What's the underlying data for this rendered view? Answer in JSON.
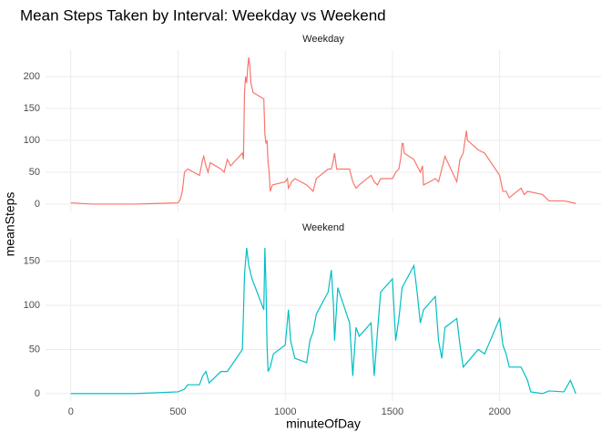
{
  "title": "Mean Steps Taken by Interval: Weekday vs Weekend",
  "x_label": "minuteOfDay",
  "y_label": "meanSteps",
  "chart_data": [
    {
      "type": "line",
      "title": "Weekday",
      "x": [
        0,
        100,
        200,
        300,
        400,
        500,
        510,
        520,
        530,
        545,
        600,
        615,
        620,
        630,
        640,
        650,
        700,
        715,
        730,
        745,
        800,
        805,
        810,
        815,
        820,
        825,
        830,
        835,
        840,
        850,
        900,
        905,
        910,
        915,
        920,
        925,
        930,
        940,
        1000,
        1010,
        1015,
        1030,
        1045,
        1100,
        1115,
        1130,
        1145,
        1200,
        1215,
        1225,
        1230,
        1240,
        1300,
        1315,
        1330,
        1345,
        1400,
        1415,
        1430,
        1445,
        1500,
        1515,
        1530,
        1540,
        1545,
        1550,
        1555,
        1600,
        1630,
        1640,
        1645,
        1700,
        1715,
        1730,
        1745,
        1800,
        1815,
        1830,
        1845,
        1850,
        1900,
        1930,
        2000,
        2015,
        2030,
        2045,
        2100,
        2115,
        2130,
        2200,
        2230,
        2300,
        2330,
        2355
      ],
      "series": [
        {
          "name": "Weekday",
          "color": "#F8766D",
          "values": [
            2,
            0,
            0,
            0,
            1,
            2,
            7,
            20,
            50,
            55,
            45,
            70,
            75,
            60,
            50,
            65,
            55,
            50,
            70,
            60,
            80,
            70,
            175,
            200,
            190,
            215,
            230,
            215,
            190,
            175,
            165,
            110,
            95,
            100,
            65,
            50,
            20,
            30,
            35,
            40,
            25,
            35,
            40,
            30,
            25,
            20,
            40,
            55,
            55,
            70,
            80,
            55,
            55,
            35,
            25,
            30,
            45,
            35,
            30,
            40,
            40,
            50,
            55,
            75,
            95,
            95,
            80,
            70,
            50,
            60,
            30,
            40,
            35,
            55,
            75,
            35,
            70,
            80,
            115,
            100,
            85,
            80,
            45,
            20,
            20,
            10,
            25,
            15,
            20,
            15,
            5,
            5,
            3,
            1
          ]
        }
      ],
      "xlim": [
        -118,
        2473
      ],
      "xticks": [
        0,
        500,
        1000,
        1500,
        2000
      ],
      "ylim": [
        -11.5,
        241.5
      ],
      "yticks": [
        0,
        50,
        100,
        150,
        200
      ],
      "grid": true
    },
    {
      "type": "line",
      "title": "Weekend",
      "x": [
        0,
        100,
        300,
        500,
        530,
        545,
        600,
        615,
        630,
        645,
        700,
        730,
        800,
        805,
        810,
        820,
        825,
        830,
        845,
        900,
        905,
        910,
        915,
        920,
        930,
        945,
        1000,
        1015,
        1025,
        1030,
        1045,
        1100,
        1115,
        1130,
        1145,
        1200,
        1215,
        1225,
        1230,
        1245,
        1300,
        1315,
        1330,
        1345,
        1400,
        1415,
        1430,
        1445,
        1500,
        1515,
        1530,
        1545,
        1600,
        1615,
        1630,
        1645,
        1700,
        1715,
        1730,
        1745,
        1800,
        1815,
        1830,
        1900,
        1930,
        2000,
        2015,
        2030,
        2045,
        2100,
        2130,
        2145,
        2200,
        2230,
        2300,
        2330,
        2355
      ],
      "series": [
        {
          "name": "Weekend",
          "color": "#00BFC4",
          "values": [
            0,
            0,
            0,
            2,
            5,
            10,
            10,
            20,
            25,
            12,
            25,
            25,
            50,
            90,
            135,
            165,
            155,
            145,
            130,
            95,
            165,
            125,
            55,
            25,
            30,
            45,
            55,
            95,
            60,
            55,
            40,
            35,
            60,
            70,
            90,
            115,
            140,
            100,
            60,
            120,
            80,
            20,
            75,
            65,
            80,
            20,
            70,
            115,
            130,
            60,
            85,
            120,
            145,
            115,
            80,
            95,
            110,
            60,
            40,
            75,
            85,
            55,
            30,
            50,
            45,
            85,
            55,
            45,
            30,
            30,
            15,
            2,
            0,
            3,
            2,
            15,
            0
          ]
        }
      ],
      "xlim": [
        -118,
        2473
      ],
      "xticks": [
        0,
        500,
        1000,
        1500,
        2000
      ],
      "ylim": [
        -8.4,
        175.4
      ],
      "yticks": [
        0,
        50,
        100,
        150
      ],
      "grid": true
    }
  ]
}
